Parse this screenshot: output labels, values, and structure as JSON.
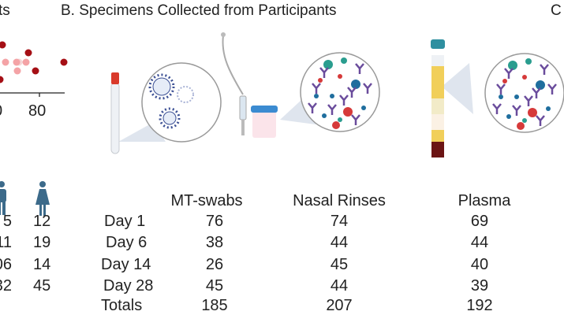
{
  "panel_a": {
    "title_fragment": "ts",
    "axis_tick_labels": [
      "0",
      "80"
    ],
    "colors": {
      "dark": "#a50f15",
      "light": "#f4a3a6",
      "faint": "#f5d7d8"
    },
    "icons": [
      "male-icon",
      "female-icon"
    ],
    "male_values_fragment": [
      "5",
      "11",
      "06",
      "32"
    ],
    "female_values": [
      "12",
      "19",
      "14",
      "45"
    ]
  },
  "panel_b": {
    "title": "B. Specimens Collected from Participants",
    "illustrations": [
      "swab-tube-icon",
      "virus-magnifier-icon",
      "nasal-rinse-syringe-icon",
      "specimen-cup-icon",
      "antibody-magnifier-icon",
      "blood-tube-icon",
      "plasma-antibody-magnifier-icon"
    ],
    "columns": [
      "MT-swabs",
      "Nasal Rinses",
      "Plasma"
    ],
    "rows": [
      {
        "label": "Day 1",
        "values": [
          "76",
          "74",
          "69"
        ]
      },
      {
        "label": "Day 6",
        "values": [
          "38",
          "44",
          "44"
        ]
      },
      {
        "label": "Day 14",
        "values": [
          "26",
          "45",
          "40"
        ]
      },
      {
        "label": "Day 28",
        "values": [
          "45",
          "44",
          "39"
        ]
      },
      {
        "label": "Totals",
        "values": [
          "185",
          "207",
          "192"
        ]
      }
    ]
  },
  "panel_c": {
    "title_fragment": "C"
  }
}
